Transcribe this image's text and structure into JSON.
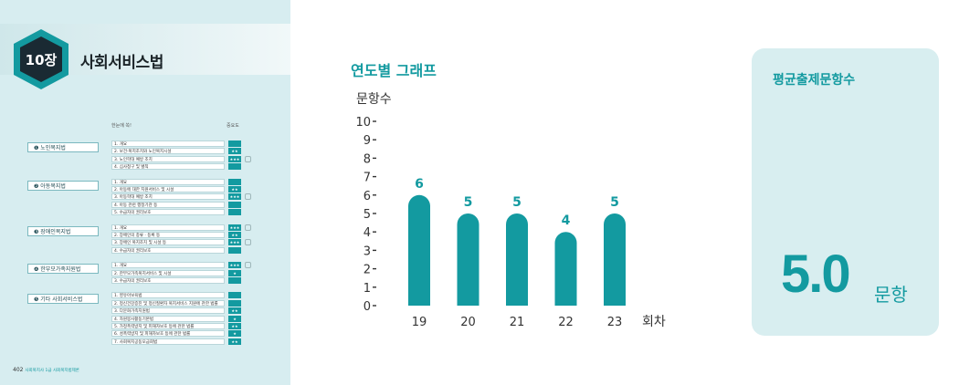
{
  "chapter": {
    "number": "10장",
    "title": "사회서비스법",
    "page_number": "402",
    "footer_text": "사회복지사 1급 사회복지법제론"
  },
  "outline": {
    "col_content": "한눈에 쏙!",
    "col_importance": "중요도",
    "sections": [
      {
        "title": "❶ 노인복지법",
        "rows": [
          {
            "text": "1. 개요",
            "stars": ""
          },
          {
            "text": "2. 보건·복지조치와 노인복지시설",
            "stars": "★★"
          },
          {
            "text": "3. 노인학대 예방 조치",
            "stars": "★★★"
          },
          {
            "text": "4. 심사청구 및 벌칙",
            "stars": ""
          }
        ]
      },
      {
        "title": "❷ 아동복지법",
        "rows": [
          {
            "text": "1. 개요",
            "stars": ""
          },
          {
            "text": "2. 아동에 대한 지원서비스 및 시설",
            "stars": "★★"
          },
          {
            "text": "3. 아동학대 예방 조치",
            "stars": "★★★"
          },
          {
            "text": "4. 아동 관련 행정기관 등",
            "stars": ""
          },
          {
            "text": "5. 수급자의 권리보호",
            "stars": ""
          }
        ]
      },
      {
        "title": "❸ 장애인복지법",
        "rows": [
          {
            "text": "1. 개요",
            "stars": "★★★"
          },
          {
            "text": "2. 장애인의 종류 · 등록 등",
            "stars": "★★"
          },
          {
            "text": "3. 장애인 복지조치 및 시설 등",
            "stars": "★★★"
          },
          {
            "text": "4. 수급자의 권리보호",
            "stars": ""
          }
        ]
      },
      {
        "title": "❹ 한부모가족지원법",
        "rows": [
          {
            "text": "1. 개요",
            "stars": "★★★"
          },
          {
            "text": "2. 한부모가족복지서비스 및 시설",
            "stars": "★"
          },
          {
            "text": "3. 수급자의 권리보호",
            "stars": ""
          }
        ]
      },
      {
        "title": "❺ 기타 사회서비스법",
        "rows": [
          {
            "text": "1. 영유아보육법",
            "stars": ""
          },
          {
            "text": "2. 정신건강증진 및 정신질환자 복지서비스 지원에 관한 법률",
            "stars": ""
          },
          {
            "text": "3. 다문화가족지원법",
            "stars": "★★"
          },
          {
            "text": "4. 자원봉사활동기본법",
            "stars": "★"
          },
          {
            "text": "5. 가정폭력방지 및 피해자보호 등에 관한 법률",
            "stars": "★★"
          },
          {
            "text": "6. 성폭력방지 및 피해자보호 등에 관한 법률",
            "stars": "★"
          },
          {
            "text": "7. 사회복지공동모금회법",
            "stars": "★★"
          }
        ]
      }
    ]
  },
  "chart_data": {
    "type": "bar",
    "title": "연도별 그래프",
    "ylabel": "문항수",
    "xlabel": "회차",
    "categories": [
      "19",
      "20",
      "21",
      "22",
      "23"
    ],
    "values": [
      6,
      5,
      5,
      4,
      5
    ],
    "ylim": [
      0,
      10
    ],
    "yticks": [
      "0",
      "1",
      "2",
      "3",
      "4",
      "5",
      "6",
      "7",
      "8",
      "9",
      "10"
    ],
    "color": "#139aa0"
  },
  "summary": {
    "title": "평균출제문항수",
    "value": "5.0",
    "unit": "문항"
  },
  "colors": {
    "accent": "#139aa0",
    "card_bg": "#d8eef0"
  }
}
